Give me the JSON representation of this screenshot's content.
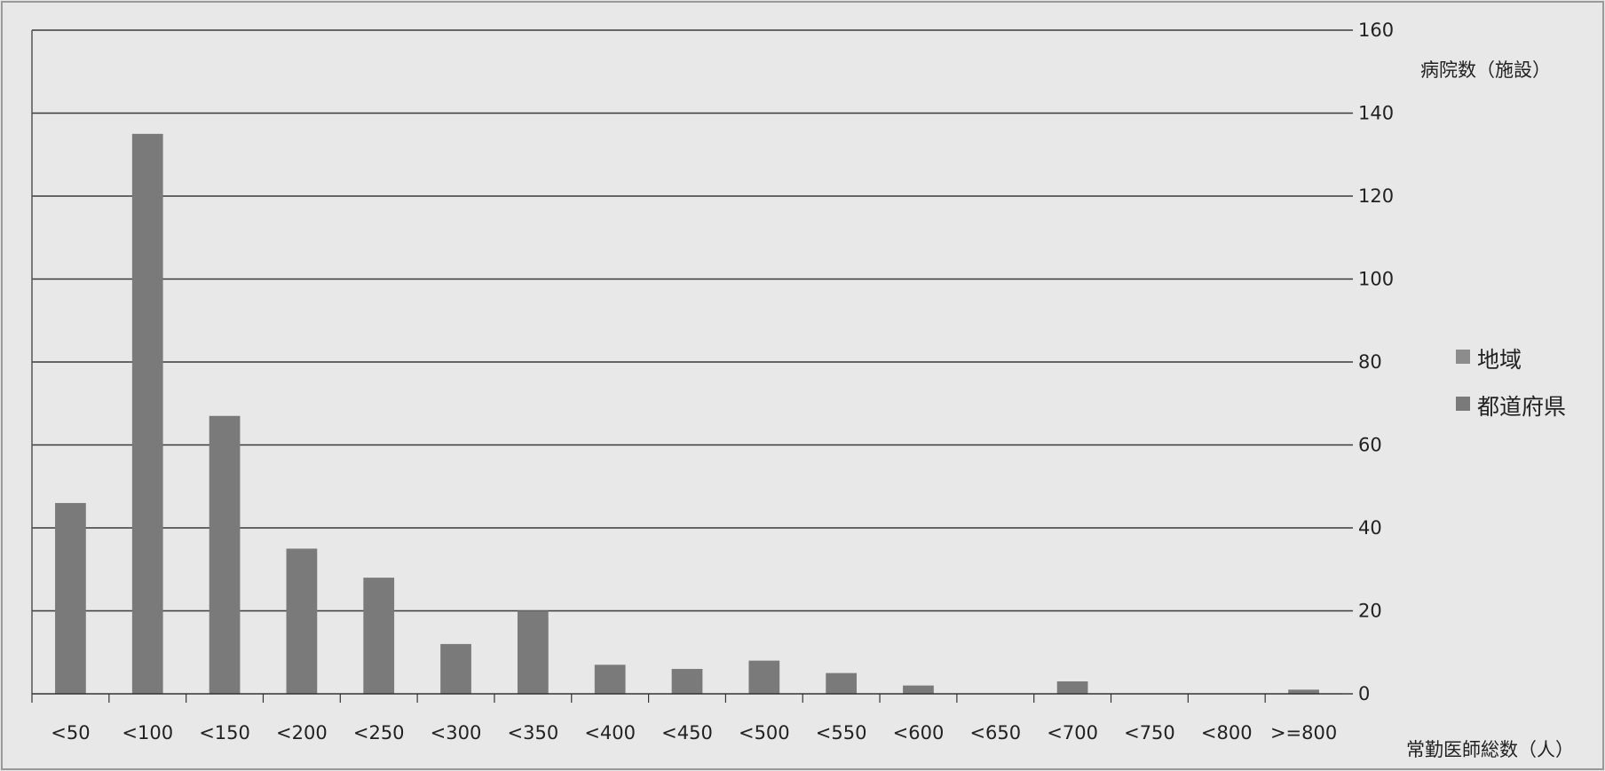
{
  "chart_data": {
    "type": "bar",
    "stacked": true,
    "categories": [
      "<50",
      "<100",
      "<150",
      "<200",
      "<250",
      "<300",
      "<350",
      "<400",
      "<450",
      "<500",
      "<550",
      "<600",
      "<650",
      "<700",
      "<750",
      "<800",
      ">=800"
    ],
    "series": [
      {
        "name": "地域",
        "color": "#8c8c8c",
        "values": [
          0,
          0,
          0,
          0,
          0,
          0,
          0,
          0,
          0,
          0,
          0,
          0,
          0,
          0,
          0,
          0,
          0
        ]
      },
      {
        "name": "都道府県",
        "color": "#7a7a7a",
        "values": [
          46,
          135,
          67,
          35,
          28,
          12,
          20,
          7,
          6,
          8,
          5,
          2,
          0,
          3,
          0,
          0,
          1
        ]
      }
    ],
    "y_axis": {
      "position": "right",
      "min": 0,
      "max": 160,
      "step": 20,
      "ticks": [
        "0",
        "20",
        "40",
        "60",
        "80",
        "100",
        "120",
        "140",
        "160"
      ]
    },
    "ylabel": "病院数（施設）",
    "xlabel": "常勤医師総数（人）",
    "grid": true,
    "legend_position": "right"
  }
}
